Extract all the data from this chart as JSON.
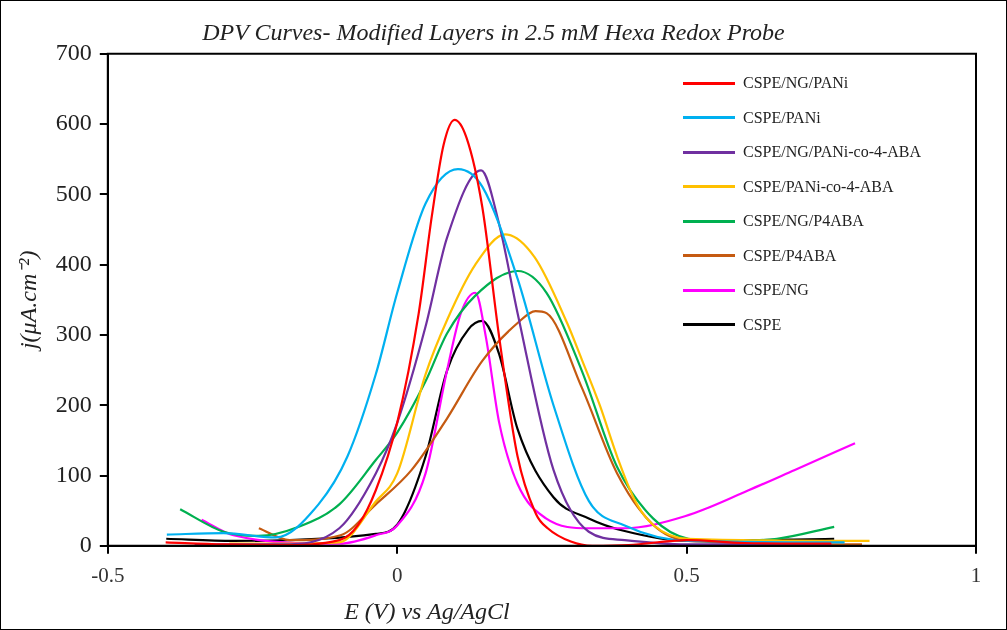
{
  "chart_data": {
    "type": "line",
    "title": "DPV Curves- Modified Layers in 2.5 mM Hexa Redox Probe",
    "xlabel": "E (V) vs Ag/AgCl",
    "ylabel": "j(μA.cm⁻²)",
    "xlim": [
      -0.5,
      1
    ],
    "xticks": [
      -0.5,
      0,
      0.5,
      1
    ],
    "ylim": [
      0,
      700
    ],
    "yticks": [
      0,
      100,
      200,
      300,
      400,
      500,
      600,
      700
    ],
    "grid": false,
    "legend": "top right",
    "marker": "none",
    "line_style": "solid",
    "series": [
      {
        "name": "CSPE/NG/PANi",
        "color": "#ff0000",
        "x": [
          -0.4,
          -0.3,
          -0.2,
          -0.1,
          -0.068,
          -0.037,
          0,
          0.037,
          0.06,
          0.08,
          0.099,
          0.12,
          0.147,
          0.176,
          0.208,
          0.24,
          0.26,
          0.3,
          0.337,
          0.4,
          0.5,
          0.6,
          0.75
        ],
        "values": [
          5,
          2,
          1,
          8,
          29,
          79,
          175,
          330,
          470,
          570,
          606,
          580,
          482,
          298,
          127,
          45,
          25,
          6,
          0,
          1,
          8,
          4,
          3
        ]
      },
      {
        "name": "CSPE/PANi",
        "color": "#00b0f0",
        "x": [
          -0.398,
          -0.3,
          -0.21,
          -0.136,
          -0.086,
          -0.037,
          0,
          0.049,
          0.105,
          0.147,
          0.208,
          0.27,
          0.331,
          0.393,
          0.503,
          0.773
        ],
        "values": [
          16,
          18,
          12,
          59,
          127,
          244,
          360,
          487,
          536,
          511,
          380,
          200,
          64,
          29,
          7,
          5
        ]
      },
      {
        "name": "CSPE/NG/PANi-co-4-ABA",
        "color": "#7030a0",
        "x": [
          -0.35,
          -0.2,
          -0.1,
          -0.037,
          0,
          0.049,
          0.086,
          0.145,
          0.176,
          0.208,
          0.27,
          0.331,
          0.393,
          0.5,
          0.75
        ],
        "values": [
          2,
          2,
          25,
          103,
          175,
          312,
          438,
          534,
          458,
          331,
          108,
          20,
          8,
          2,
          2
        ]
      },
      {
        "name": "CSPE/PANi-co-4-ABA",
        "color": "#ffc000",
        "x": [
          -0.29,
          -0.2,
          -0.1,
          -0.037,
          0,
          0.049,
          0.086,
          0.135,
          0.187,
          0.237,
          0.293,
          0.319,
          0.35,
          0.38,
          0.411,
          0.442,
          0.503,
          0.816
        ],
        "values": [
          3,
          3,
          5,
          63,
          103,
          244,
          321,
          400,
          443,
          411,
          318,
          265,
          200,
          127,
          64,
          30,
          10,
          7
        ]
      },
      {
        "name": "CSPE/NG/P4ABA",
        "color": "#00b050",
        "x": [
          -0.375,
          -0.3,
          -0.24,
          -0.17,
          -0.1,
          -0.037,
          0,
          0.049,
          0.086,
          0.135,
          0.208,
          0.258,
          0.319,
          0.38,
          0.442,
          0.503,
          0.564,
          0.656,
          0.755
        ],
        "values": [
          52,
          20,
          14,
          27,
          59,
          122,
          161,
          234,
          302,
          356,
          391,
          360,
          249,
          112,
          39,
          10,
          7,
          10,
          27
        ]
      },
      {
        "name": "CSPE/P4ABA",
        "color": "#c55a11",
        "x": [
          -0.239,
          -0.186,
          -0.098,
          -0.037,
          0.025,
          0.086,
          0.147,
          0.208,
          0.239,
          0.258,
          0.319,
          0.38,
          0.442,
          0.503,
          0.803
        ],
        "values": [
          25,
          8,
          15,
          59,
          108,
          181,
          263,
          317,
          334,
          331,
          225,
          103,
          30,
          7,
          2
        ]
      },
      {
        "name": "CSPE/NG",
        "color": "#ff00ff",
        "x": [
          -0.338,
          -0.283,
          -0.1,
          -0.037,
          0,
          0.049,
          0.086,
          0.11,
          0.135,
          0.153,
          0.176,
          0.208,
          0.257,
          0.331,
          0.393,
          0.497,
          0.607,
          0.687,
          0.791
        ],
        "values": [
          37,
          15,
          3,
          15,
          29,
          103,
          249,
          331,
          360,
          298,
          176,
          88,
          39,
          25,
          25,
          42,
          79,
          108,
          146
        ]
      },
      {
        "name": "CSPE",
        "color": "#000000",
        "x": [
          -0.399,
          -0.283,
          -0.037,
          0,
          0.049,
          0.086,
          0.123,
          0.147,
          0.176,
          0.208,
          0.27,
          0.331,
          0.393,
          0.503,
          0.755
        ],
        "values": [
          10,
          7,
          17,
          30,
          127,
          249,
          308,
          320,
          273,
          166,
          69,
          39,
          21,
          7,
          10
        ]
      }
    ]
  }
}
